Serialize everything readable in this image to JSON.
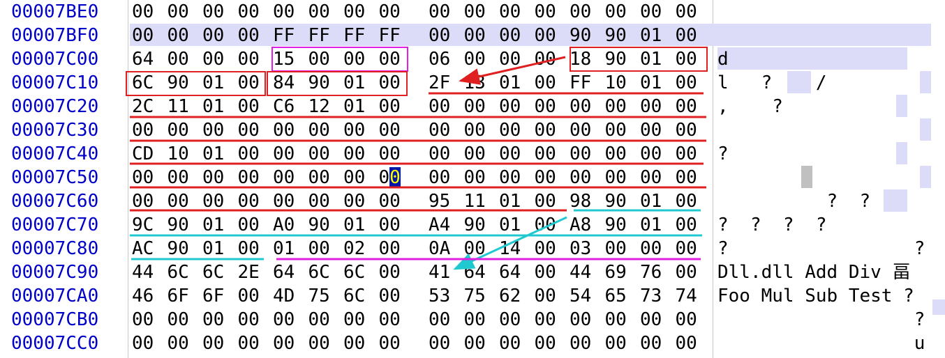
{
  "rows": [
    {
      "offset": "00007BE0",
      "bytes": [
        "00",
        "00",
        "00",
        "00",
        "00",
        "00",
        "00",
        "00",
        "00",
        "00",
        "00",
        "00",
        "00",
        "00",
        "00",
        "00"
      ],
      "ascii": ""
    },
    {
      "offset": "00007BF0",
      "bytes": [
        "00",
        "00",
        "00",
        "00",
        "FF",
        "FF",
        "FF",
        "FF",
        "00",
        "00",
        "00",
        "00",
        "90",
        "90",
        "01",
        "00"
      ],
      "ascii": ""
    },
    {
      "offset": "00007C00",
      "bytes": [
        "64",
        "00",
        "00",
        "00",
        "15",
        "00",
        "00",
        "00",
        "06",
        "00",
        "00",
        "00",
        "18",
        "90",
        "01",
        "00"
      ],
      "ascii": "d"
    },
    {
      "offset": "00007C10",
      "bytes": [
        "6C",
        "90",
        "01",
        "00",
        "84",
        "90",
        "01",
        "00",
        "2F",
        "13",
        "01",
        "00",
        "FF",
        "10",
        "01",
        "00"
      ],
      "ascii": "l   ?    /"
    },
    {
      "offset": "00007C20",
      "bytes": [
        "2C",
        "11",
        "01",
        "00",
        "C6",
        "12",
        "01",
        "00",
        "00",
        "00",
        "00",
        "00",
        "00",
        "00",
        "00",
        "00"
      ],
      "ascii": ",    ?"
    },
    {
      "offset": "00007C30",
      "bytes": [
        "00",
        "00",
        "00",
        "00",
        "00",
        "00",
        "00",
        "00",
        "00",
        "00",
        "00",
        "00",
        "00",
        "00",
        "00",
        "00"
      ],
      "ascii": ""
    },
    {
      "offset": "00007C40",
      "bytes": [
        "CD",
        "10",
        "01",
        "00",
        "00",
        "00",
        "00",
        "00",
        "00",
        "00",
        "00",
        "00",
        "00",
        "00",
        "00",
        "00"
      ],
      "ascii": "?"
    },
    {
      "offset": "00007C50",
      "bytes": [
        "00",
        "00",
        "00",
        "00",
        "00",
        "00",
        "00",
        "00",
        "00",
        "00",
        "00",
        "00",
        "00",
        "00",
        "00",
        "00"
      ],
      "ascii": ""
    },
    {
      "offset": "00007C60",
      "bytes": [
        "00",
        "00",
        "00",
        "00",
        "00",
        "00",
        "00",
        "00",
        "95",
        "11",
        "01",
        "00",
        "98",
        "90",
        "01",
        "00"
      ],
      "ascii": "          ?  ?"
    },
    {
      "offset": "00007C70",
      "bytes": [
        "9C",
        "90",
        "01",
        "00",
        "A0",
        "90",
        "01",
        "00",
        "A4",
        "90",
        "01",
        "00",
        "A8",
        "90",
        "01",
        "00"
      ],
      "ascii": "?  ?  ?  ?"
    },
    {
      "offset": "00007C80",
      "bytes": [
        "AC",
        "90",
        "01",
        "00",
        "01",
        "00",
        "02",
        "00",
        "0A",
        "00",
        "14",
        "00",
        "03",
        "00",
        "00",
        "00"
      ],
      "ascii": "?                 ?"
    },
    {
      "offset": "00007C90",
      "bytes": [
        "44",
        "6C",
        "6C",
        "2E",
        "64",
        "6C",
        "6C",
        "00",
        "41",
        "64",
        "64",
        "00",
        "44",
        "69",
        "76",
        "00"
      ],
      "ascii": "Dll.dll Add Div 畐"
    },
    {
      "offset": "00007CA0",
      "bytes": [
        "46",
        "6F",
        "6F",
        "00",
        "4D",
        "75",
        "6C",
        "00",
        "53",
        "75",
        "62",
        "00",
        "54",
        "65",
        "73",
        "74"
      ],
      "ascii": "Foo Mul Sub Test ?"
    },
    {
      "offset": "00007CB0",
      "bytes": [
        "00",
        "00",
        "00",
        "00",
        "00",
        "00",
        "00",
        "00",
        "00",
        "00",
        "00",
        "00",
        "00",
        "00",
        "00",
        "00"
      ],
      "ascii": "                  ?"
    },
    {
      "offset": "00007CC0",
      "bytes": [
        "00",
        "00",
        "00",
        "00",
        "00",
        "00",
        "00",
        "00",
        "00",
        "00",
        "00",
        "00",
        "00",
        "00",
        "00",
        "00"
      ],
      "ascii": "                  u"
    }
  ],
  "caret": {
    "offset": "00007C50",
    "byte_index": 7
  },
  "colors": {
    "offset_text": "#0000c8",
    "selection": "#dcdcf8",
    "red": "#e02020",
    "magenta": "#e020e0",
    "cyan": "#20c8d0",
    "caret_bg": "#0018a8",
    "caret_fg": "#ffff00"
  }
}
